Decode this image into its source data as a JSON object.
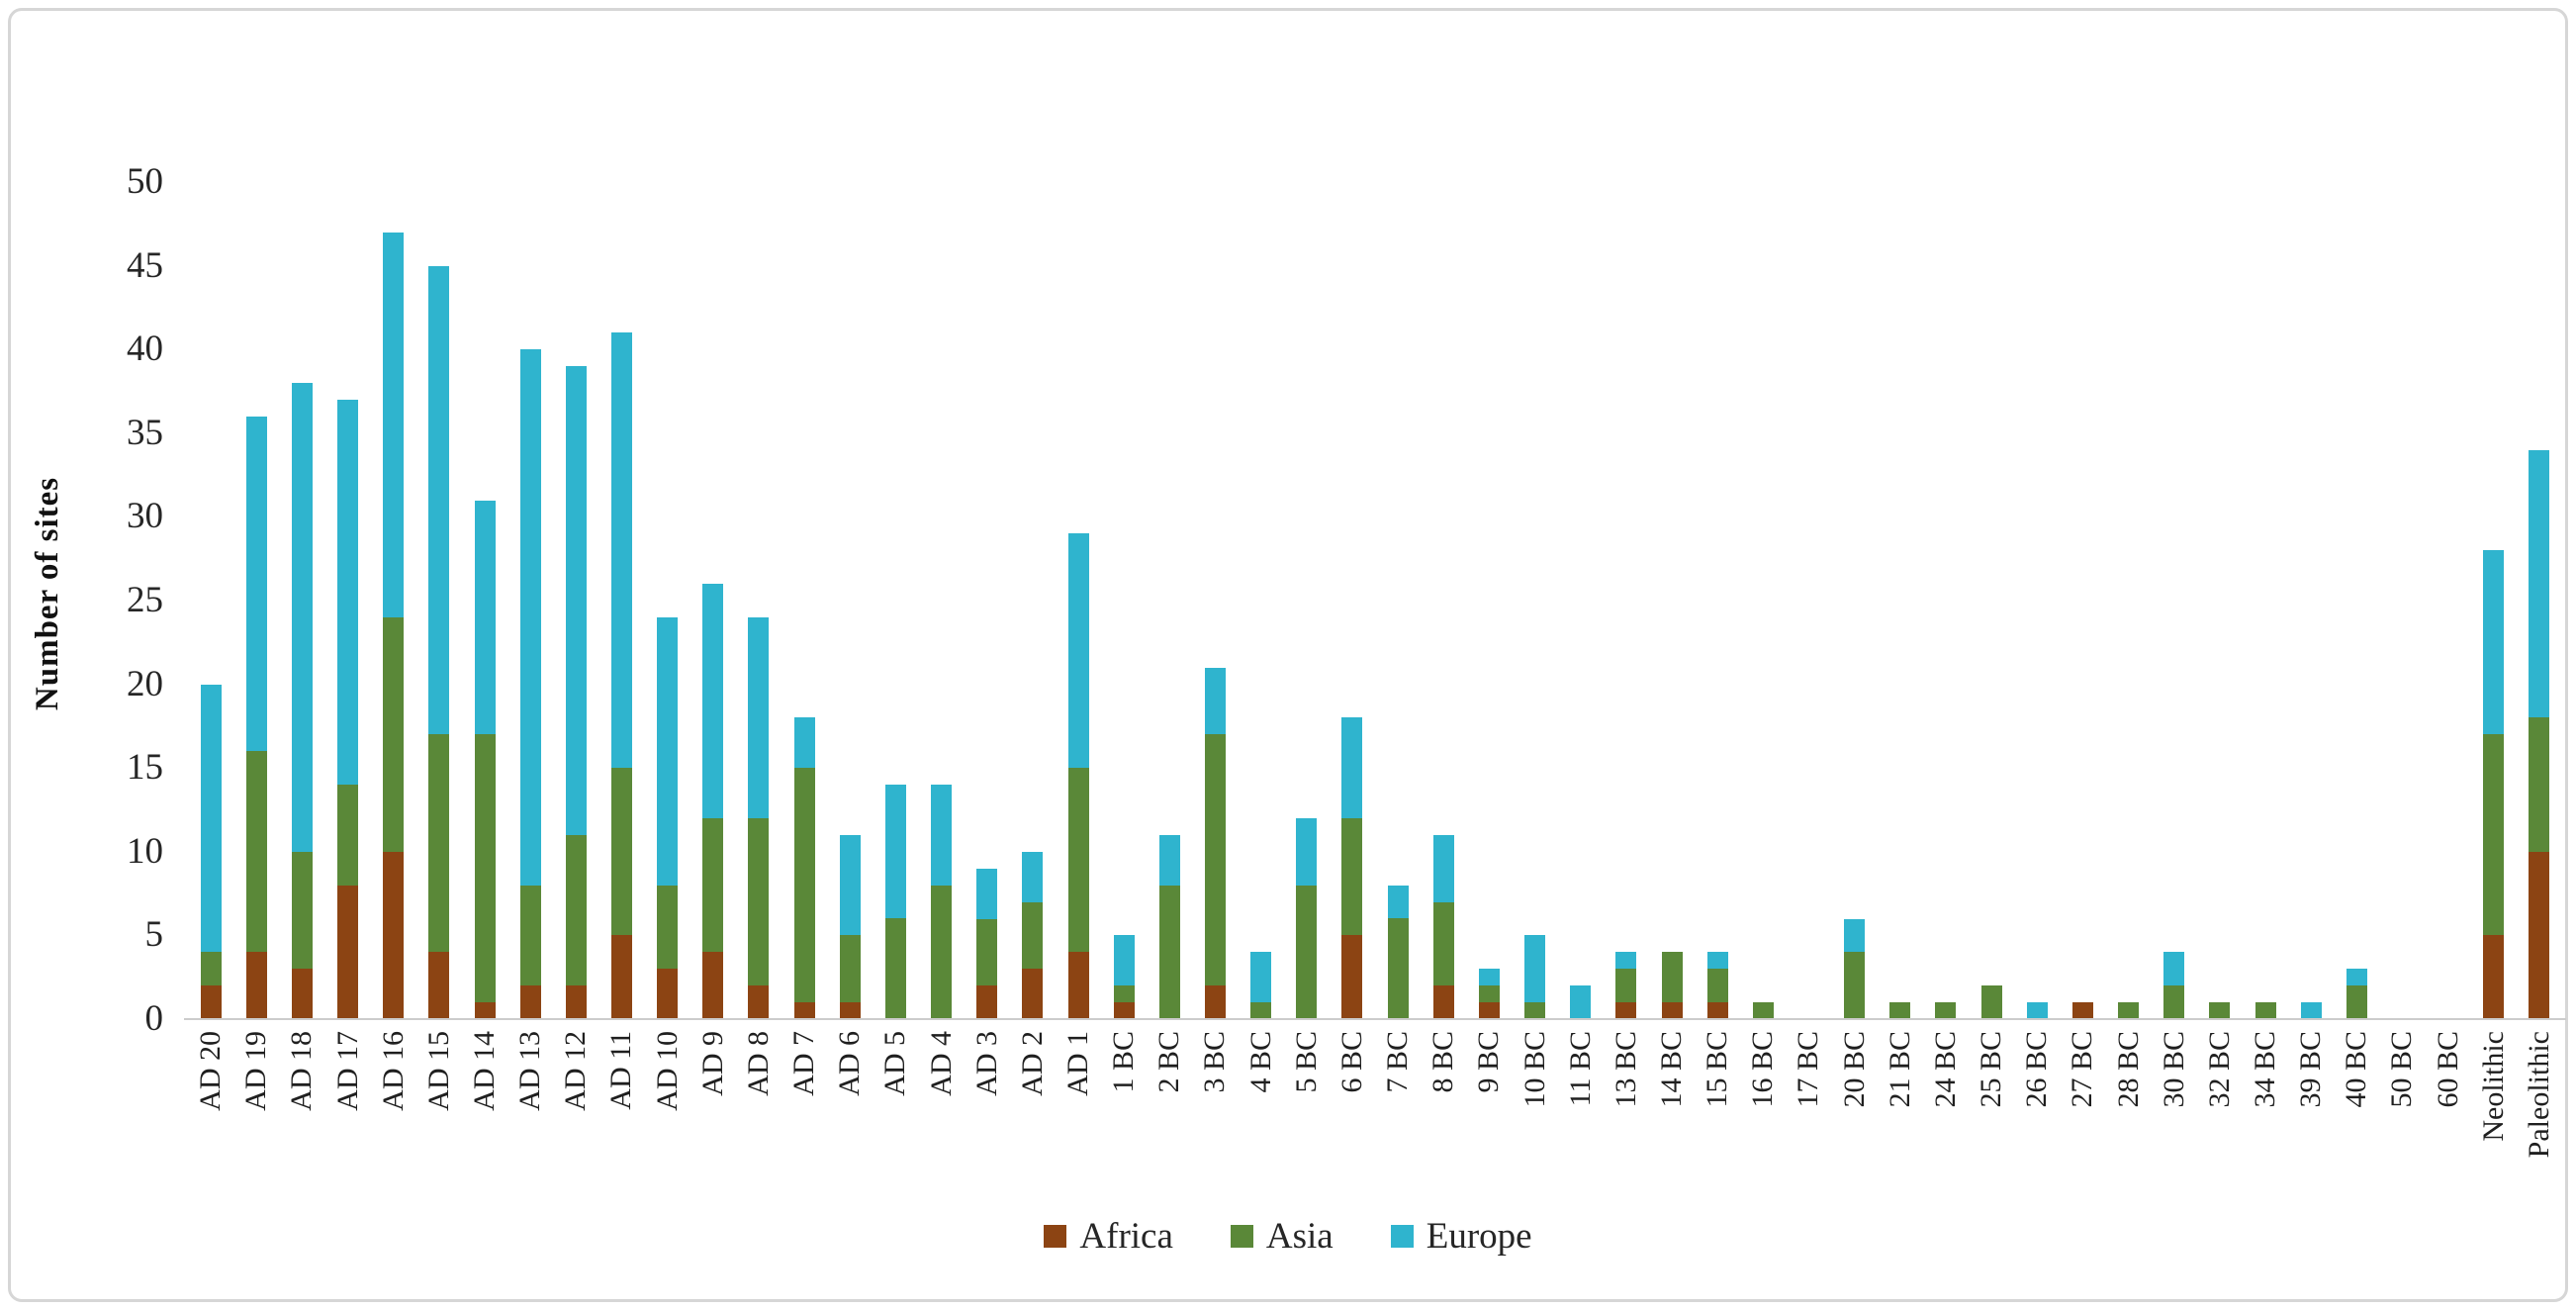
{
  "chart_data": {
    "type": "bar",
    "stacked": true,
    "title": "",
    "xlabel": "",
    "ylabel": "Number of sites",
    "ylim": [
      0,
      50
    ],
    "ytick_step": 5,
    "grid": false,
    "legend_position": "bottom",
    "axis_color": "#cccccc",
    "categories": [
      "AD 20",
      "AD 19",
      "AD 18",
      "AD 17",
      "AD 16",
      "AD 15",
      "AD 14",
      "AD 13",
      "AD 12",
      "AD 11",
      "AD 10",
      "AD 9",
      "AD 8",
      "AD 7",
      "AD 6",
      "AD 5",
      "AD 4",
      "AD 3",
      "AD 2",
      "AD 1",
      "1 BC",
      "2 BC",
      "3 BC",
      "4 BC",
      "5 BC",
      "6 BC",
      "7 BC",
      "8 BC",
      "9 BC",
      "10 BC",
      "11 BC",
      "13 BC",
      "14 BC",
      "15 BC",
      "16 BC",
      "17 BC",
      "20 BC",
      "21 BC",
      "24 BC",
      "25 BC",
      "26 BC",
      "27 BC",
      "28 BC",
      "30 BC",
      "32 BC",
      "34 BC",
      "39 BC",
      "40 BC",
      "50 BC",
      "60 BC",
      "Neolithic",
      "Paleolithic"
    ],
    "series": [
      {
        "name": "Africa",
        "color": "#8C4413",
        "values": [
          2,
          4,
          3,
          8,
          10,
          4,
          1,
          2,
          2,
          5,
          3,
          4,
          2,
          1,
          1,
          0,
          0,
          2,
          3,
          4,
          1,
          0,
          2,
          0,
          0,
          5,
          0,
          2,
          1,
          0,
          0,
          1,
          1,
          1,
          0,
          0,
          0,
          0,
          0,
          0,
          0,
          1,
          0,
          0,
          0,
          0,
          0,
          0,
          0,
          0,
          5,
          10
        ]
      },
      {
        "name": "Asia",
        "color": "#5A8838",
        "values": [
          2,
          12,
          7,
          6,
          14,
          13,
          16,
          6,
          9,
          10,
          5,
          8,
          10,
          14,
          4,
          6,
          8,
          4,
          4,
          11,
          1,
          8,
          15,
          1,
          8,
          7,
          6,
          5,
          1,
          1,
          0,
          2,
          3,
          2,
          1,
          0,
          4,
          1,
          1,
          2,
          0,
          0,
          1,
          2,
          1,
          1,
          0,
          2,
          0,
          0,
          12,
          8
        ]
      },
      {
        "name": "Europe",
        "color": "#2FB4CE",
        "values": [
          16,
          20,
          28,
          23,
          23,
          28,
          14,
          32,
          28,
          26,
          16,
          14,
          12,
          3,
          6,
          8,
          6,
          3,
          3,
          14,
          3,
          3,
          4,
          3,
          4,
          6,
          2,
          4,
          1,
          4,
          2,
          1,
          0,
          1,
          0,
          0,
          2,
          0,
          0,
          0,
          1,
          0,
          0,
          2,
          0,
          0,
          1,
          1,
          0,
          0,
          11,
          16
        ]
      }
    ]
  }
}
